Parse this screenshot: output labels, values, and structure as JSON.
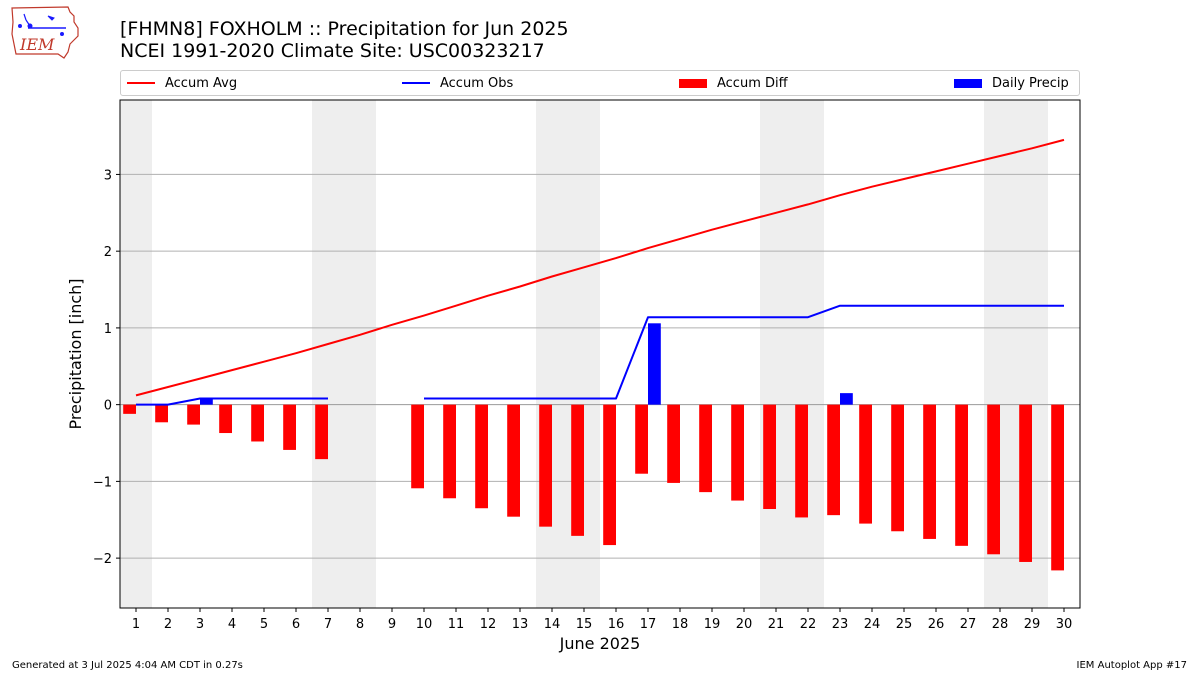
{
  "logo": {
    "text": "IEM",
    "colors": {
      "outline": "#c0392b",
      "text": "#c0392b",
      "glyph": "#1a1aff"
    }
  },
  "chart_data": {
    "type": "bar",
    "title": "[FHMN8] FOXHOLM :: Precipitation for Jun 2025",
    "subtitle": "NCEI 1991-2020 Climate Site: USC00323217",
    "xlabel": "June 2025",
    "ylabel": "Precipitation [inch]",
    "xlim": [
      0.5,
      30.5
    ],
    "ylim": [
      -2.65,
      3.97
    ],
    "yticks": [
      -2,
      -1,
      0,
      1,
      2,
      3
    ],
    "ytick_labels": [
      "−2",
      "−1",
      "0",
      "1",
      "2",
      "3"
    ],
    "grid": "horizontal",
    "legend_position": "top",
    "weekends": [
      [
        1,
        1
      ],
      [
        7,
        8
      ],
      [
        14,
        15
      ],
      [
        21,
        22
      ],
      [
        28,
        29
      ]
    ],
    "x": [
      1,
      2,
      3,
      4,
      5,
      6,
      7,
      8,
      9,
      10,
      11,
      12,
      13,
      14,
      15,
      16,
      17,
      18,
      19,
      20,
      21,
      22,
      23,
      24,
      25,
      26,
      27,
      28,
      29,
      30
    ],
    "series": [
      {
        "name": "Accum Avg",
        "kind": "line",
        "color": "#ff0000",
        "values": [
          0.12,
          0.23,
          0.34,
          0.45,
          0.56,
          0.67,
          0.79,
          0.91,
          1.04,
          1.16,
          1.29,
          1.42,
          1.54,
          1.67,
          1.79,
          1.91,
          2.04,
          2.16,
          2.28,
          2.39,
          2.5,
          2.61,
          2.73,
          2.84,
          2.94,
          3.04,
          3.14,
          3.24,
          3.34,
          3.45
        ]
      },
      {
        "name": "Accum Obs",
        "kind": "line",
        "color": "#0000ff",
        "values": [
          0.0,
          0.0,
          0.08,
          0.08,
          0.08,
          0.08,
          0.08,
          null,
          null,
          0.08,
          0.08,
          0.08,
          0.08,
          0.08,
          0.08,
          0.08,
          1.14,
          1.14,
          1.14,
          1.14,
          1.14,
          1.14,
          1.29,
          1.29,
          1.29,
          1.29,
          1.29,
          1.29,
          1.29,
          1.29
        ]
      },
      {
        "name": "Accum Diff",
        "kind": "bar",
        "color": "#ff0000",
        "offset": -0.2,
        "values": [
          -0.12,
          -0.23,
          -0.26,
          -0.37,
          -0.48,
          -0.59,
          -0.71,
          null,
          null,
          -1.09,
          -1.22,
          -1.35,
          -1.46,
          -1.59,
          -1.71,
          -1.83,
          -0.9,
          -1.02,
          -1.14,
          -1.25,
          -1.36,
          -1.47,
          -1.44,
          -1.55,
          -1.65,
          -1.75,
          -1.84,
          -1.95,
          -2.05,
          -2.16
        ]
      },
      {
        "name": "Daily Precip",
        "kind": "bar",
        "color": "#0000ff",
        "offset": 0.2,
        "values": [
          0,
          0,
          0.08,
          0,
          0,
          0,
          0,
          null,
          null,
          0,
          0,
          0,
          0,
          0,
          0,
          0,
          1.06,
          0,
          0,
          0,
          0,
          0,
          0.15,
          0,
          0,
          0,
          0,
          0,
          0,
          0
        ]
      }
    ]
  },
  "footer": {
    "left": "Generated at 3 Jul 2025 4:04 AM CDT in 0.27s",
    "right": "IEM Autoplot App #17"
  }
}
